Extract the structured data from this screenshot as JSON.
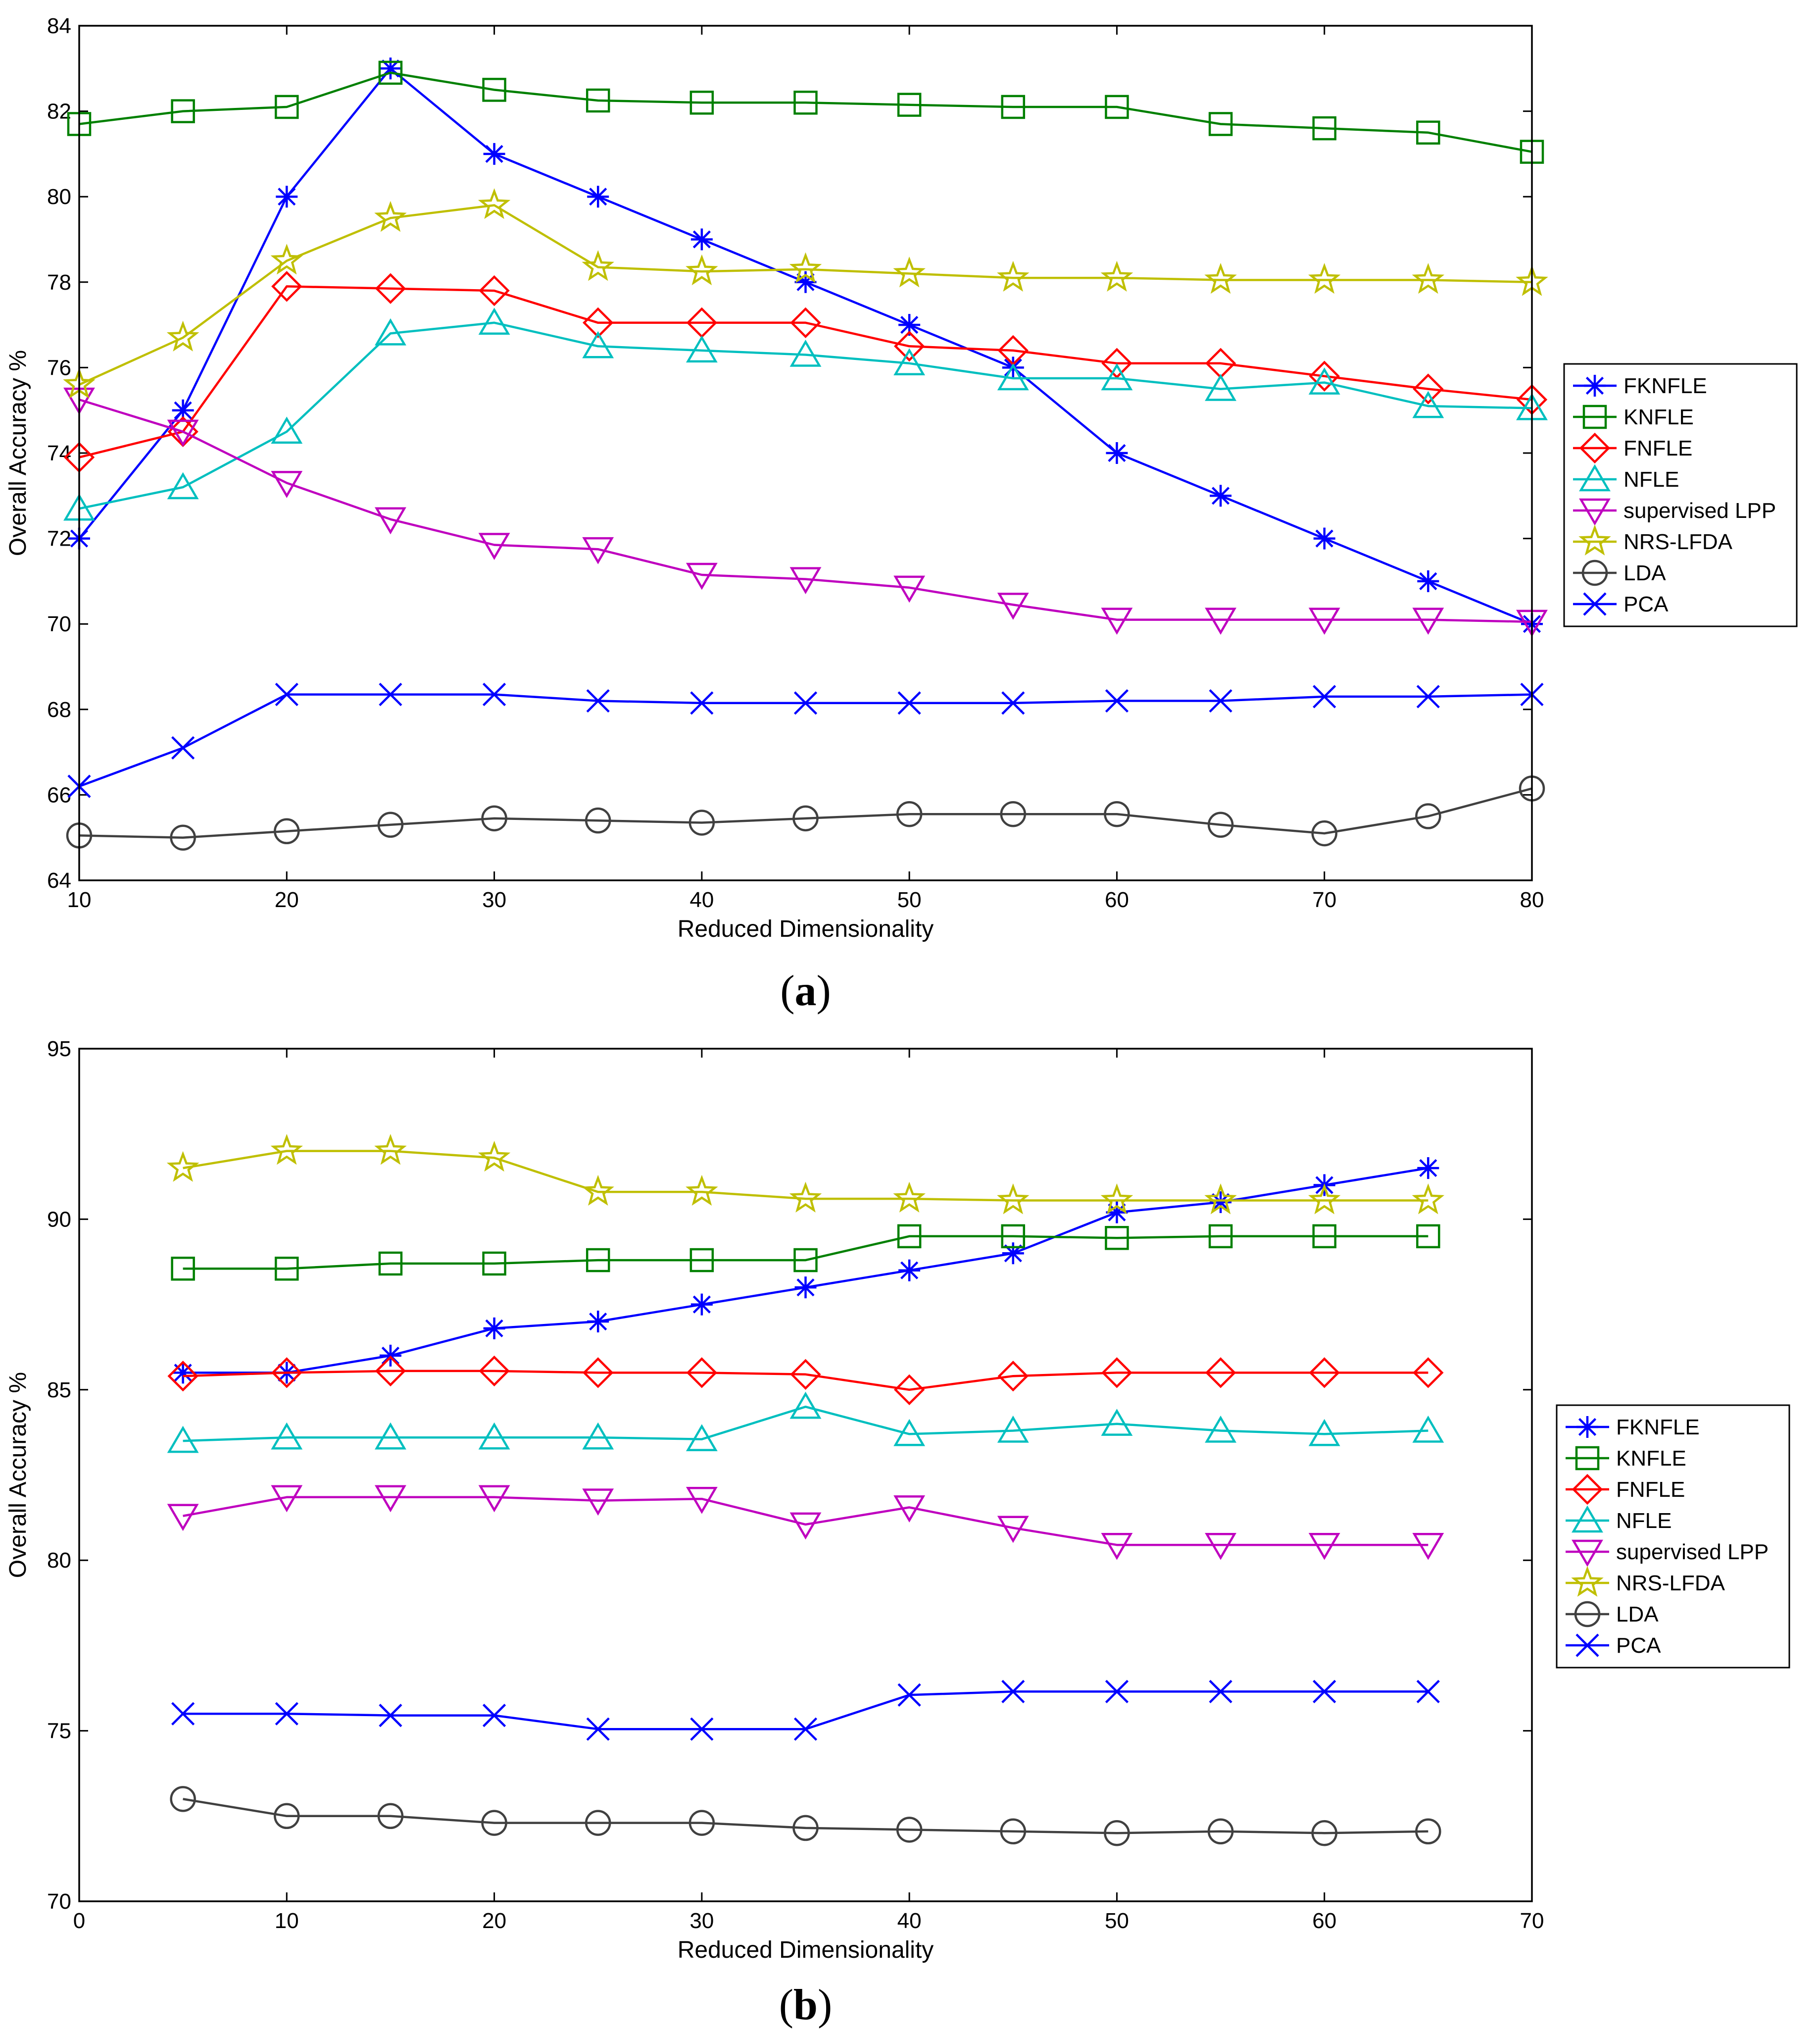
{
  "chart_data": [
    {
      "type": "line",
      "panel": "a",
      "caption": "(a)",
      "xlabel": "Reduced Dimensionality",
      "ylabel": "Overall Accuracy %",
      "xlim": [
        10,
        80
      ],
      "ylim": [
        64,
        84
      ],
      "xticks": [
        10,
        20,
        30,
        40,
        50,
        60,
        70,
        80
      ],
      "yticks": [
        64,
        66,
        68,
        70,
        72,
        74,
        76,
        78,
        80,
        82,
        84
      ],
      "legend_position": "center-right",
      "x": [
        10,
        15,
        20,
        25,
        30,
        35,
        40,
        45,
        50,
        55,
        60,
        65,
        70,
        75,
        80
      ],
      "series": [
        {
          "name": "FKNFLE",
          "color": "#0000ff",
          "marker": "asterisk",
          "values": [
            72.0,
            75.0,
            80.0,
            83.0,
            81.0,
            80.0,
            79.0,
            78.0,
            77.0,
            76.0,
            74.0,
            73.0,
            72.0,
            71.0,
            70.0
          ]
        },
        {
          "name": "KNFLE",
          "color": "#008000",
          "marker": "square",
          "values": [
            81.7,
            82.0,
            82.1,
            82.9,
            82.5,
            82.25,
            82.2,
            82.2,
            82.15,
            82.1,
            82.1,
            81.7,
            81.6,
            81.5,
            81.05
          ]
        },
        {
          "name": "FNFLE",
          "color": "#ff0000",
          "marker": "diamond",
          "values": [
            73.9,
            74.5,
            77.9,
            77.85,
            77.8,
            77.05,
            77.05,
            77.05,
            76.5,
            76.4,
            76.1,
            76.1,
            75.8,
            75.5,
            75.25
          ]
        },
        {
          "name": "NFLE",
          "color": "#00bfbf",
          "marker": "triangle-up",
          "values": [
            72.7,
            73.2,
            74.5,
            76.8,
            77.05,
            76.5,
            76.4,
            76.3,
            76.1,
            75.75,
            75.75,
            75.5,
            75.65,
            75.1,
            75.05
          ]
        },
        {
          "name": "supervised LPP",
          "color": "#bf00bf",
          "marker": "triangle-down",
          "values": [
            75.25,
            74.5,
            73.3,
            72.45,
            71.85,
            71.75,
            71.15,
            71.05,
            70.85,
            70.45,
            70.1,
            70.1,
            70.1,
            70.1,
            70.05
          ]
        },
        {
          "name": "NRS-LFDA",
          "color": "#bfbf00",
          "marker": "star",
          "values": [
            75.6,
            76.7,
            78.5,
            79.5,
            79.8,
            78.35,
            78.25,
            78.3,
            78.2,
            78.1,
            78.1,
            78.05,
            78.05,
            78.05,
            78.0
          ]
        },
        {
          "name": "LDA",
          "color": "#404040",
          "marker": "circle",
          "values": [
            65.05,
            65.0,
            65.15,
            65.3,
            65.45,
            65.4,
            65.35,
            65.45,
            65.55,
            65.55,
            65.55,
            65.3,
            65.1,
            65.5,
            66.15
          ]
        },
        {
          "name": "PCA",
          "color": "#0000ff",
          "marker": "x",
          "values": [
            66.2,
            67.1,
            68.35,
            68.35,
            68.35,
            68.2,
            68.15,
            68.15,
            68.15,
            68.15,
            68.2,
            68.2,
            68.3,
            68.3,
            68.35
          ]
        }
      ]
    },
    {
      "type": "line",
      "panel": "b",
      "caption": "(b)",
      "xlabel": "Reduced Dimensionality",
      "ylabel": "Overall Accuracy %",
      "xlim": [
        0,
        70
      ],
      "ylim": [
        70,
        95
      ],
      "xticks": [
        0,
        10,
        20,
        30,
        40,
        50,
        60,
        70
      ],
      "yticks": [
        70,
        75,
        80,
        85,
        90,
        95
      ],
      "legend_position": "center-right",
      "x": [
        5,
        10,
        15,
        20,
        25,
        30,
        35,
        40,
        45,
        50,
        55,
        60,
        65
      ],
      "series": [
        {
          "name": "FKNFLE",
          "color": "#0000ff",
          "marker": "asterisk",
          "values": [
            85.5,
            85.5,
            86.0,
            86.8,
            87.0,
            87.5,
            88.0,
            88.5,
            89.0,
            90.2,
            90.5,
            91.0,
            91.5
          ]
        },
        {
          "name": "KNFLE",
          "color": "#008000",
          "marker": "square",
          "values": [
            88.55,
            88.55,
            88.7,
            88.7,
            88.8,
            88.8,
            88.8,
            89.5,
            89.5,
            89.45,
            89.5,
            89.5,
            89.5
          ]
        },
        {
          "name": "FNFLE",
          "color": "#ff0000",
          "marker": "diamond",
          "values": [
            85.4,
            85.5,
            85.55,
            85.55,
            85.5,
            85.5,
            85.45,
            85.0,
            85.4,
            85.5,
            85.5,
            85.5,
            85.5
          ]
        },
        {
          "name": "NFLE",
          "color": "#00bfbf",
          "marker": "triangle-up",
          "values": [
            83.5,
            83.6,
            83.6,
            83.6,
            83.6,
            83.55,
            84.5,
            83.7,
            83.8,
            84.0,
            83.8,
            83.7,
            83.8
          ]
        },
        {
          "name": "supervised LPP",
          "color": "#bf00bf",
          "marker": "triangle-down",
          "values": [
            81.3,
            81.85,
            81.85,
            81.85,
            81.75,
            81.8,
            81.05,
            81.55,
            80.95,
            80.45,
            80.45,
            80.45,
            80.45
          ]
        },
        {
          "name": "NRS-LFDA",
          "color": "#bfbf00",
          "marker": "star",
          "values": [
            91.5,
            92.0,
            92.0,
            91.8,
            90.8,
            90.8,
            90.6,
            90.6,
            90.55,
            90.55,
            90.55,
            90.55,
            90.55
          ]
        },
        {
          "name": "LDA",
          "color": "#404040",
          "marker": "circle",
          "values": [
            73.0,
            72.5,
            72.5,
            72.3,
            72.3,
            72.3,
            72.15,
            72.1,
            72.05,
            72.0,
            72.05,
            72.0,
            72.05
          ]
        },
        {
          "name": "PCA",
          "color": "#0000ff",
          "marker": "x",
          "values": [
            75.5,
            75.5,
            75.45,
            75.45,
            75.05,
            75.05,
            75.05,
            76.05,
            76.15,
            76.15,
            76.15,
            76.15,
            76.15
          ]
        }
      ]
    }
  ]
}
